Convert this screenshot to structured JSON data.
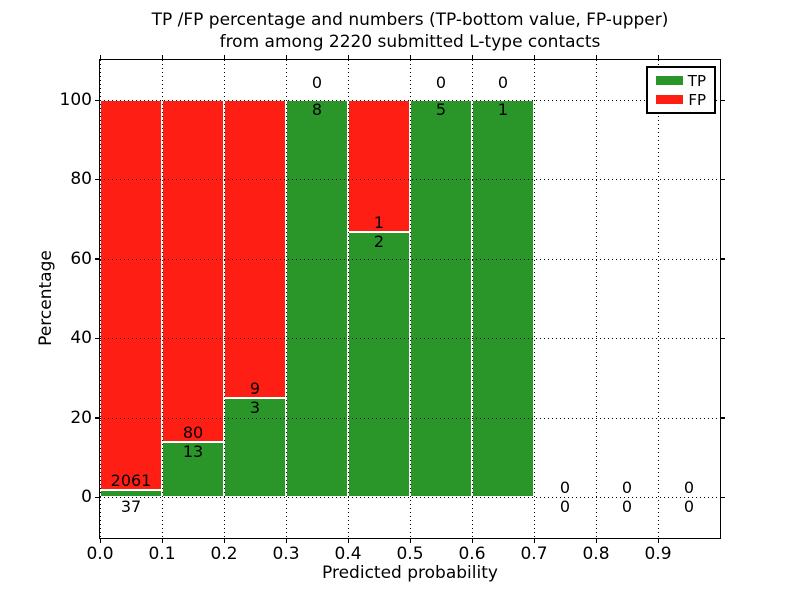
{
  "chart_data": {
    "type": "bar",
    "stacked": true,
    "title": "TP /FP percentage and numbers (TP-bottom value, FP-upper) from among 2220 submitted L-type contacts",
    "title_line1": "TP /FP percentage and numbers (TP-bottom value, FP-upper)",
    "title_line2": "from among 2220 submitted L-type contacts",
    "xlabel": "Predicted probability",
    "ylabel": "Percentage",
    "xlim": [
      0.0,
      1.0
    ],
    "ylim": [
      -10,
      110
    ],
    "x_ticks": [
      "0.0",
      "0.1",
      "0.2",
      "0.3",
      "0.4",
      "0.5",
      "0.6",
      "0.7",
      "0.8",
      "0.9"
    ],
    "y_ticks": [
      0,
      20,
      40,
      60,
      80,
      100
    ],
    "grid": true,
    "unit": "percent of bin total (TP+FP stacked to 100%)",
    "colors": {
      "tp": "#2a962a",
      "fp": "#ff1e14"
    },
    "legend": {
      "position": "upper right",
      "entries": [
        {
          "label": "TP",
          "color": "#2a962a"
        },
        {
          "label": "FP",
          "color": "#ff1e14"
        }
      ]
    },
    "bins": [
      {
        "range": [
          0.0,
          0.1
        ],
        "tp": 37,
        "fp": 2061
      },
      {
        "range": [
          0.1,
          0.2
        ],
        "tp": 13,
        "fp": 80
      },
      {
        "range": [
          0.2,
          0.3
        ],
        "tp": 3,
        "fp": 9
      },
      {
        "range": [
          0.3,
          0.4
        ],
        "tp": 8,
        "fp": 0
      },
      {
        "range": [
          0.4,
          0.5
        ],
        "tp": 2,
        "fp": 1
      },
      {
        "range": [
          0.5,
          0.6
        ],
        "tp": 5,
        "fp": 0
      },
      {
        "range": [
          0.6,
          0.7
        ],
        "tp": 1,
        "fp": 0
      },
      {
        "range": [
          0.7,
          0.8
        ],
        "tp": 0,
        "fp": 0
      },
      {
        "range": [
          0.8,
          0.9
        ],
        "tp": 0,
        "fp": 0
      },
      {
        "range": [
          0.9,
          1.0
        ],
        "tp": 0,
        "fp": 0
      }
    ]
  }
}
